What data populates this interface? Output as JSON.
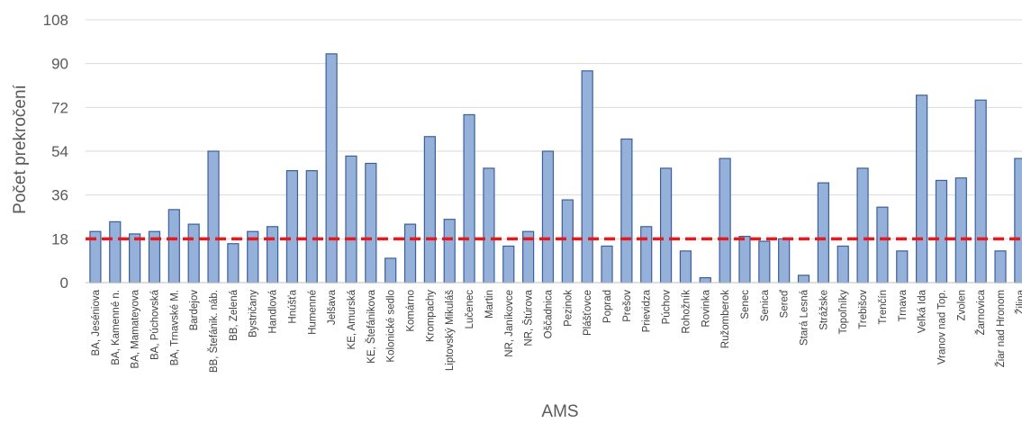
{
  "chart_data": {
    "type": "bar",
    "xlabel": "AMS",
    "ylabel": "Počet prekročení",
    "ylim": [
      0,
      108
    ],
    "yticks": [
      0,
      18,
      36,
      54,
      72,
      90,
      108
    ],
    "threshold": 18,
    "threshold_color": "#e8191e",
    "bar_color": "#95b1d9",
    "grid": true,
    "categories": [
      "BA, Jeséniova",
      "BA, Kamenné n.",
      "BA, Mamateyova",
      "BA, Púchovská",
      "BA, Trnavské M.",
      "Bardejov",
      "BB, Štefánik. náb.",
      "BB, Zelená",
      "Bystričany",
      "Handlová",
      "Hnúšťa",
      "Humenné",
      "Jelšava",
      "KE, Amurská",
      "KE, Štefánikova",
      "Kolonické sedlo",
      "Komárno",
      "Krompachy",
      "Liptovský Mikuláš",
      "Lučenec",
      "Martin",
      "NR, Janíkovce",
      "NR, Štúrova",
      "Oščadnica",
      "Pezinok",
      "Plášťovce",
      "Poprad",
      "Prešov",
      "Prievidza",
      "Púchov",
      "Rohožník",
      "Rovinka",
      "Ružomberok",
      "Senec",
      "Senica",
      "Sereď",
      "Stará Lesná",
      "Strážske",
      "Topoľníky",
      "Trebišov",
      "Trenčín",
      "Trnava",
      "Veľká Ida",
      "Vranov nad Top.",
      "Zvolen",
      "Žarnovica",
      "Žiar nad Hronom",
      "Žilina"
    ],
    "values": [
      21,
      25,
      20,
      21,
      30,
      24,
      54,
      16,
      21,
      23,
      46,
      46,
      94,
      52,
      49,
      10,
      24,
      60,
      26,
      69,
      47,
      15,
      21,
      54,
      34,
      87,
      15,
      59,
      23,
      47,
      13,
      2,
      51,
      19,
      17,
      18,
      3,
      41,
      15,
      47,
      31,
      13,
      77,
      42,
      43,
      75,
      13,
      51
    ]
  }
}
